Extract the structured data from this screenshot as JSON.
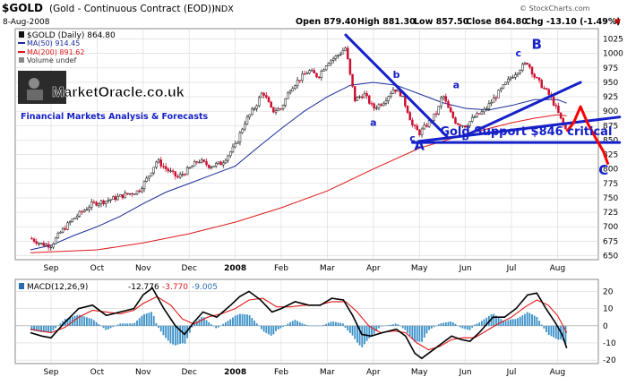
{
  "chart_data": [
    {
      "type": "candlestick",
      "title": "$GOLD (Gold - Continuous Contract (EOD)) INDX",
      "symbol": "$GOLD",
      "subtitle": "(Gold - Continuous Contract (EOD))",
      "exchange": "INDX",
      "date": "8-Aug-2008",
      "quote": {
        "open": "Open 879.40",
        "high": "High 881.30",
        "low": "Low 857.50",
        "close": "Close 864.80",
        "chg": "Chg -13.10 (-1.49%)",
        "chg_arrow": "▼"
      },
      "copyright": "© StockCharts.com",
      "legend": {
        "price": "$GOLD (Daily) 864.80",
        "ma50": "MA(50) 914.45",
        "ma200": "MA(200) 891.62",
        "volume": "Volume undef"
      },
      "months": [
        "Sep",
        "Oct",
        "Nov",
        "Dec",
        "2008",
        "Feb",
        "Mar",
        "Apr",
        "May",
        "Jun",
        "Jul",
        "Aug"
      ],
      "ylim": [
        643,
        1043
      ],
      "yticks": [
        650,
        675,
        700,
        725,
        750,
        775,
        800,
        825,
        850,
        875,
        900,
        925,
        950,
        975,
        1000,
        1025
      ],
      "close_path": [
        {
          "m": -0.45,
          "v": 680
        },
        {
          "m": -0.2,
          "v": 670
        },
        {
          "m": 0.0,
          "v": 668
        },
        {
          "m": 0.2,
          "v": 690
        },
        {
          "m": 0.5,
          "v": 715
        },
        {
          "m": 0.9,
          "v": 740
        },
        {
          "m": 1.2,
          "v": 745
        },
        {
          "m": 1.6,
          "v": 755
        },
        {
          "m": 1.9,
          "v": 762
        },
        {
          "m": 2.1,
          "v": 785
        },
        {
          "m": 2.3,
          "v": 815
        },
        {
          "m": 2.5,
          "v": 800
        },
        {
          "m": 2.75,
          "v": 785
        },
        {
          "m": 3.0,
          "v": 800
        },
        {
          "m": 3.2,
          "v": 815
        },
        {
          "m": 3.45,
          "v": 805
        },
        {
          "m": 3.7,
          "v": 810
        },
        {
          "m": 4.0,
          "v": 840
        },
        {
          "m": 4.2,
          "v": 880
        },
        {
          "m": 4.45,
          "v": 910
        },
        {
          "m": 4.6,
          "v": 935
        },
        {
          "m": 4.8,
          "v": 900
        },
        {
          "m": 5.0,
          "v": 905
        },
        {
          "m": 5.2,
          "v": 940
        },
        {
          "m": 5.45,
          "v": 960
        },
        {
          "m": 5.6,
          "v": 970
        },
        {
          "m": 5.8,
          "v": 960
        },
        {
          "m": 6.0,
          "v": 985
        },
        {
          "m": 6.2,
          "v": 995
        },
        {
          "m": 6.4,
          "v": 1010
        },
        {
          "m": 6.5,
          "v": 960
        },
        {
          "m": 6.6,
          "v": 920
        },
        {
          "m": 6.8,
          "v": 930
        },
        {
          "m": 7.0,
          "v": 905
        },
        {
          "m": 7.2,
          "v": 915
        },
        {
          "m": 7.45,
          "v": 940
        },
        {
          "m": 7.6,
          "v": 930
        },
        {
          "m": 7.75,
          "v": 900
        },
        {
          "m": 7.85,
          "v": 875
        },
        {
          "m": 8.0,
          "v": 862
        },
        {
          "m": 8.2,
          "v": 880
        },
        {
          "m": 8.4,
          "v": 900
        },
        {
          "m": 8.5,
          "v": 930
        },
        {
          "m": 8.65,
          "v": 900
        },
        {
          "m": 8.8,
          "v": 880
        },
        {
          "m": 9.0,
          "v": 875
        },
        {
          "m": 9.2,
          "v": 890
        },
        {
          "m": 9.4,
          "v": 900
        },
        {
          "m": 9.6,
          "v": 920
        },
        {
          "m": 9.8,
          "v": 940
        },
        {
          "m": 10.0,
          "v": 960
        },
        {
          "m": 10.2,
          "v": 975
        },
        {
          "m": 10.35,
          "v": 985
        },
        {
          "m": 10.5,
          "v": 960
        },
        {
          "m": 10.7,
          "v": 940
        },
        {
          "m": 10.85,
          "v": 925
        },
        {
          "m": 11.0,
          "v": 900
        },
        {
          "m": 11.1,
          "v": 880
        },
        {
          "m": 11.2,
          "v": 865
        }
      ],
      "ma50_path": [
        {
          "m": -0.45,
          "v": 660
        },
        {
          "m": 0.0,
          "v": 668
        },
        {
          "m": 0.5,
          "v": 685
        },
        {
          "m": 1.0,
          "v": 700
        },
        {
          "m": 1.5,
          "v": 718
        },
        {
          "m": 2.0,
          "v": 740
        },
        {
          "m": 2.5,
          "v": 760
        },
        {
          "m": 3.0,
          "v": 775
        },
        {
          "m": 3.5,
          "v": 790
        },
        {
          "m": 4.0,
          "v": 805
        },
        {
          "m": 4.5,
          "v": 838
        },
        {
          "m": 5.0,
          "v": 870
        },
        {
          "m": 5.5,
          "v": 900
        },
        {
          "m": 6.0,
          "v": 925
        },
        {
          "m": 6.5,
          "v": 945
        },
        {
          "m": 7.0,
          "v": 950
        },
        {
          "m": 7.5,
          "v": 945
        },
        {
          "m": 8.0,
          "v": 930
        },
        {
          "m": 8.5,
          "v": 915
        },
        {
          "m": 9.0,
          "v": 905
        },
        {
          "m": 9.5,
          "v": 902
        },
        {
          "m": 10.0,
          "v": 910
        },
        {
          "m": 10.5,
          "v": 920
        },
        {
          "m": 11.0,
          "v": 920
        },
        {
          "m": 11.2,
          "v": 914
        }
      ],
      "ma200_path": [
        {
          "m": -0.45,
          "v": 655
        },
        {
          "m": 1.0,
          "v": 660
        },
        {
          "m": 2.0,
          "v": 672
        },
        {
          "m": 3.0,
          "v": 688
        },
        {
          "m": 4.0,
          "v": 708
        },
        {
          "m": 5.0,
          "v": 733
        },
        {
          "m": 6.0,
          "v": 762
        },
        {
          "m": 7.0,
          "v": 800
        },
        {
          "m": 8.0,
          "v": 836
        },
        {
          "m": 8.5,
          "v": 848
        },
        {
          "m": 9.0,
          "v": 860
        },
        {
          "m": 9.5,
          "v": 870
        },
        {
          "m": 10.0,
          "v": 880
        },
        {
          "m": 10.5,
          "v": 888
        },
        {
          "m": 11.0,
          "v": 894
        },
        {
          "m": 11.2,
          "v": 892
        }
      ],
      "annotations": {
        "A": {
          "label": "A",
          "m": 8.0,
          "v": 833
        },
        "B": {
          "label": "B",
          "m": 10.55,
          "v": 1008
        },
        "C": {
          "label": "C",
          "m": 12.0,
          "v": 790
        },
        "small": [
          {
            "label": "b",
            "m": 7.5,
            "v": 958
          },
          {
            "label": "a",
            "m": 7.0,
            "v": 875
          },
          {
            "label": "c",
            "m": 7.85,
            "v": 848
          },
          {
            "label": "a",
            "m": 8.8,
            "v": 940
          },
          {
            "label": "b",
            "m": 9.0,
            "v": 850
          },
          {
            "label": "c",
            "m": 10.15,
            "v": 995
          }
        ],
        "support_text": "Gold Support $846 critical",
        "support_level": 846,
        "blue_lines": [
          [
            {
              "m": 6.4,
              "v": 1032
            },
            {
              "m": 8.6,
              "v": 856
            }
          ],
          [
            {
              "m": 8.0,
              "v": 848
            },
            {
              "m": 12.35,
              "v": 890
            }
          ],
          [
            {
              "m": 9.0,
              "v": 858
            },
            {
              "m": 11.5,
              "v": 950
            }
          ],
          [
            {
              "m": 7.85,
              "v": 846
            },
            {
              "m": 12.35,
              "v": 846
            }
          ]
        ],
        "red_projection": [
          {
            "m": 11.2,
            "v": 865
          },
          {
            "m": 11.35,
            "v": 880
          },
          {
            "m": 11.5,
            "v": 908
          },
          {
            "m": 11.65,
            "v": 880
          },
          {
            "m": 11.82,
            "v": 855
          },
          {
            "m": 12.0,
            "v": 830
          },
          {
            "m": 12.1,
            "v": 808
          }
        ]
      }
    },
    {
      "type": "line",
      "title": "MACD(12,26,9)",
      "legend": {
        "name": "MACD(12,26,9)",
        "v1": "-12.776",
        "v2": "-3.770",
        "v3": "-9.005"
      },
      "ylim": [
        -22,
        27
      ],
      "yticks": [
        -20,
        -10,
        0,
        10,
        20
      ],
      "macd": [
        {
          "m": -0.45,
          "v": -4
        },
        {
          "m": -0.2,
          "v": -6
        },
        {
          "m": 0.0,
          "v": -7
        },
        {
          "m": 0.3,
          "v": 2
        },
        {
          "m": 0.6,
          "v": 10
        },
        {
          "m": 0.9,
          "v": 12
        },
        {
          "m": 1.2,
          "v": 6
        },
        {
          "m": 1.5,
          "v": 8
        },
        {
          "m": 1.8,
          "v": 10
        },
        {
          "m": 2.0,
          "v": 18
        },
        {
          "m": 2.2,
          "v": 22
        },
        {
          "m": 2.45,
          "v": 10
        },
        {
          "m": 2.7,
          "v": 0
        },
        {
          "m": 2.9,
          "v": -5
        },
        {
          "m": 3.1,
          "v": 2
        },
        {
          "m": 3.3,
          "v": 8
        },
        {
          "m": 3.6,
          "v": 5
        },
        {
          "m": 3.9,
          "v": 12
        },
        {
          "m": 4.1,
          "v": 17
        },
        {
          "m": 4.3,
          "v": 20
        },
        {
          "m": 4.55,
          "v": 15
        },
        {
          "m": 4.8,
          "v": 8
        },
        {
          "m": 5.0,
          "v": 10
        },
        {
          "m": 5.3,
          "v": 14
        },
        {
          "m": 5.6,
          "v": 12
        },
        {
          "m": 5.85,
          "v": 12
        },
        {
          "m": 6.1,
          "v": 16
        },
        {
          "m": 6.35,
          "v": 15
        },
        {
          "m": 6.55,
          "v": 6
        },
        {
          "m": 6.75,
          "v": -5
        },
        {
          "m": 6.95,
          "v": -6
        },
        {
          "m": 7.2,
          "v": -4
        },
        {
          "m": 7.5,
          "v": -2
        },
        {
          "m": 7.7,
          "v": -6
        },
        {
          "m": 7.9,
          "v": -16
        },
        {
          "m": 8.05,
          "v": -19
        },
        {
          "m": 8.3,
          "v": -14
        },
        {
          "m": 8.5,
          "v": -10
        },
        {
          "m": 8.7,
          "v": -6
        },
        {
          "m": 8.9,
          "v": -8
        },
        {
          "m": 9.1,
          "v": -9
        },
        {
          "m": 9.3,
          "v": -4
        },
        {
          "m": 9.6,
          "v": 5
        },
        {
          "m": 9.85,
          "v": 5
        },
        {
          "m": 10.1,
          "v": 10
        },
        {
          "m": 10.35,
          "v": 18
        },
        {
          "m": 10.55,
          "v": 19
        },
        {
          "m": 10.75,
          "v": 10
        },
        {
          "m": 10.95,
          "v": 2
        },
        {
          "m": 11.1,
          "v": -5
        },
        {
          "m": 11.2,
          "v": -13
        }
      ],
      "signal": [
        {
          "m": -0.45,
          "v": -2
        },
        {
          "m": 0.0,
          "v": -4
        },
        {
          "m": 0.3,
          "v": -1
        },
        {
          "m": 0.6,
          "v": 5
        },
        {
          "m": 0.9,
          "v": 9
        },
        {
          "m": 1.2,
          "v": 8
        },
        {
          "m": 1.5,
          "v": 7
        },
        {
          "m": 1.8,
          "v": 9
        },
        {
          "m": 2.0,
          "v": 13
        },
        {
          "m": 2.3,
          "v": 17
        },
        {
          "m": 2.6,
          "v": 12
        },
        {
          "m": 2.85,
          "v": 4
        },
        {
          "m": 3.1,
          "v": 1
        },
        {
          "m": 3.4,
          "v": 5
        },
        {
          "m": 3.7,
          "v": 7
        },
        {
          "m": 4.0,
          "v": 10
        },
        {
          "m": 4.3,
          "v": 15
        },
        {
          "m": 4.6,
          "v": 16
        },
        {
          "m": 4.9,
          "v": 11
        },
        {
          "m": 5.2,
          "v": 11
        },
        {
          "m": 5.5,
          "v": 12
        },
        {
          "m": 5.8,
          "v": 12
        },
        {
          "m": 6.1,
          "v": 14
        },
        {
          "m": 6.4,
          "v": 14
        },
        {
          "m": 6.65,
          "v": 8
        },
        {
          "m": 6.9,
          "v": 0
        },
        {
          "m": 7.15,
          "v": -4
        },
        {
          "m": 7.45,
          "v": -3
        },
        {
          "m": 7.7,
          "v": -4
        },
        {
          "m": 7.95,
          "v": -10
        },
        {
          "m": 8.2,
          "v": -14
        },
        {
          "m": 8.45,
          "v": -12
        },
        {
          "m": 8.7,
          "v": -8
        },
        {
          "m": 8.95,
          "v": -7
        },
        {
          "m": 9.2,
          "v": -7
        },
        {
          "m": 9.45,
          "v": -3
        },
        {
          "m": 9.7,
          "v": 1
        },
        {
          "m": 10.0,
          "v": 5
        },
        {
          "m": 10.3,
          "v": 11
        },
        {
          "m": 10.55,
          "v": 15
        },
        {
          "m": 10.8,
          "v": 12
        },
        {
          "m": 11.0,
          "v": 6
        },
        {
          "m": 11.2,
          "v": -4
        }
      ]
    }
  ],
  "logo": {
    "name": "MarketOracle.co.uk",
    "tagline": "Financial Markets Analysis & Forecasts"
  },
  "colors": {
    "ma50": "#1a2a9a",
    "ma200": "#e01818",
    "annot_blue": "#1520c8",
    "annot_red": "#ff0000",
    "hist": "#3a90c8",
    "candle_up": "#111111",
    "candle_down": "#cc1030"
  }
}
